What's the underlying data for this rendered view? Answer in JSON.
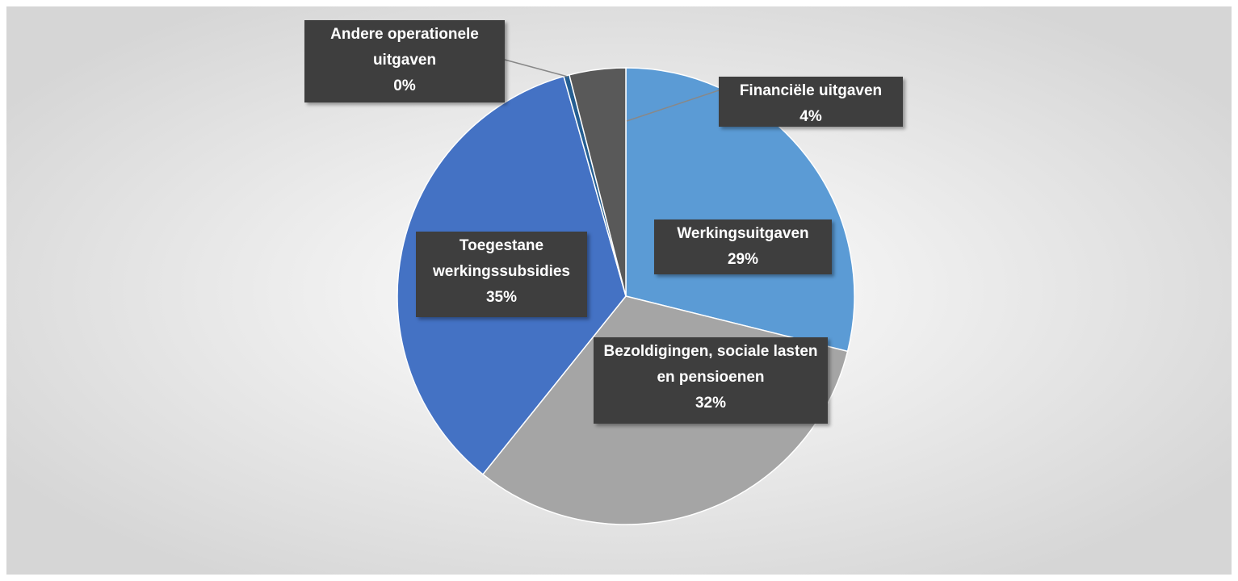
{
  "chart_data": {
    "type": "pie",
    "categories": [
      "Werkingsuitgaven",
      "Bezoldigingen, sociale lasten en pensioenen",
      "Toegestane werkingssubsidies",
      "Andere operationele uitgaven",
      "Financiële uitgaven"
    ],
    "values": [
      29,
      32,
      35,
      0.4,
      4
    ],
    "value_labels": [
      "29%",
      "32%",
      "35%",
      "0%",
      "4%"
    ],
    "colors": [
      "#5b9bd5",
      "#a5a5a5",
      "#4472c4",
      "#255e91",
      "#595959"
    ]
  }
}
